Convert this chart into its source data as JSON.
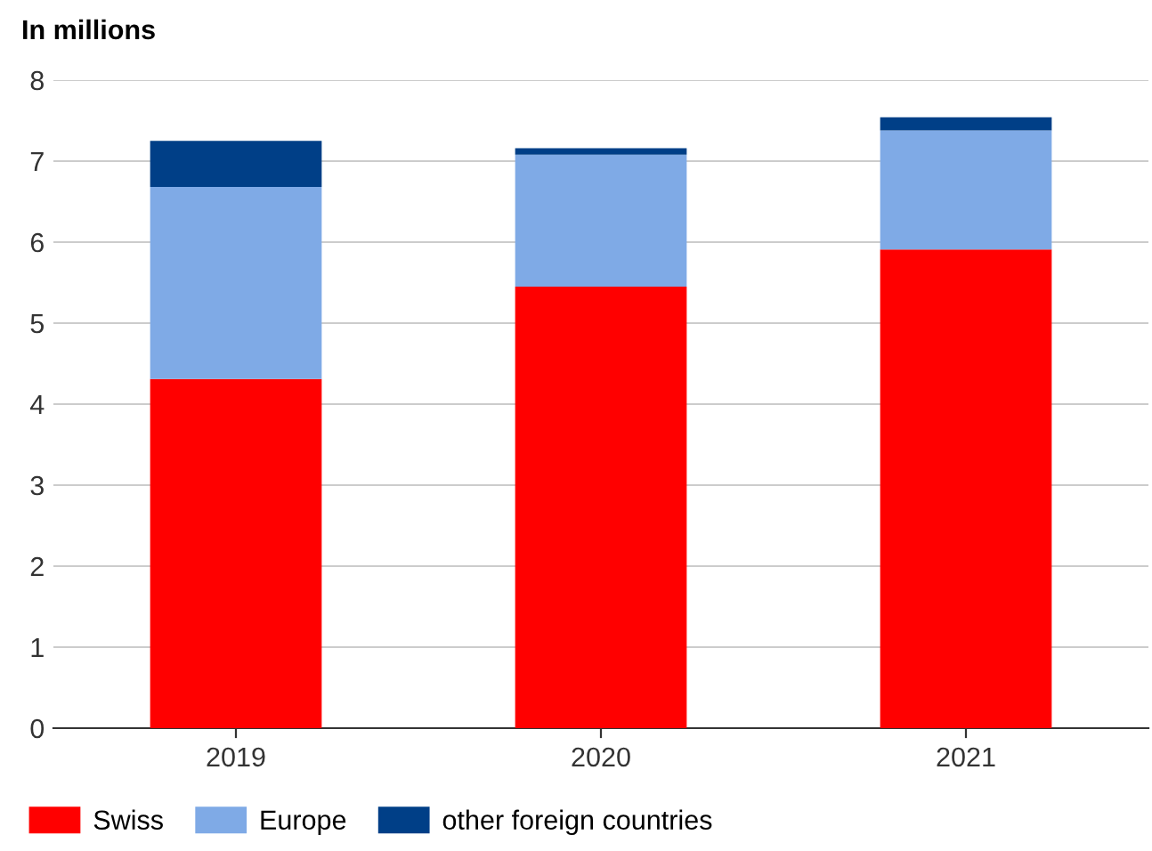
{
  "chart_data": {
    "type": "bar",
    "stacked": true,
    "title": "In millions",
    "categories": [
      "2019",
      "2020",
      "2021"
    ],
    "series": [
      {
        "name": "Swiss",
        "color": "#ff0000",
        "values": [
          4.31,
          5.45,
          5.91
        ]
      },
      {
        "name": "Europe",
        "color": "#7faae6",
        "values": [
          2.37,
          1.63,
          1.47
        ]
      },
      {
        "name": "other foreign countries",
        "color": "#003f87",
        "values": [
          0.57,
          0.08,
          0.16
        ]
      }
    ],
    "ylim": [
      0,
      8
    ],
    "yticks": [
      0,
      1,
      2,
      3,
      4,
      5,
      6,
      7,
      8
    ],
    "grid": "y",
    "legend": "bottom"
  }
}
